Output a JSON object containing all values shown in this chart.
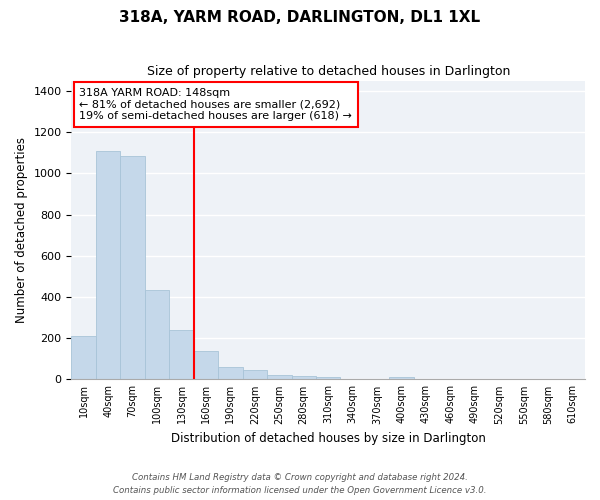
{
  "title": "318A, YARM ROAD, DARLINGTON, DL1 1XL",
  "subtitle": "Size of property relative to detached houses in Darlington",
  "xlabel": "Distribution of detached houses by size in Darlington",
  "ylabel": "Number of detached properties",
  "bar_color": "#c5d8ea",
  "bar_edge_color": "#a8c4d8",
  "bin_labels": [
    "10sqm",
    "40sqm",
    "70sqm",
    "100sqm",
    "130sqm",
    "160sqm",
    "190sqm",
    "220sqm",
    "250sqm",
    "280sqm",
    "310sqm",
    "340sqm",
    "370sqm",
    "400sqm",
    "430sqm",
    "460sqm",
    "490sqm",
    "520sqm",
    "550sqm",
    "580sqm",
    "610sqm"
  ],
  "bar_heights": [
    210,
    1110,
    1085,
    435,
    240,
    140,
    60,
    45,
    20,
    15,
    10,
    0,
    0,
    10,
    0,
    0,
    0,
    0,
    0,
    0,
    0
  ],
  "ylim": [
    0,
    1450
  ],
  "yticks": [
    0,
    200,
    400,
    600,
    800,
    1000,
    1200,
    1400
  ],
  "property_line_x": 4.5,
  "property_line_label": "318A YARM ROAD: 148sqm",
  "annotation_line1": "← 81% of detached houses are smaller (2,692)",
  "annotation_line2": "19% of semi-detached houses are larger (618) →",
  "footer_line1": "Contains HM Land Registry data © Crown copyright and database right 2024.",
  "footer_line2": "Contains public sector information licensed under the Open Government Licence v3.0."
}
